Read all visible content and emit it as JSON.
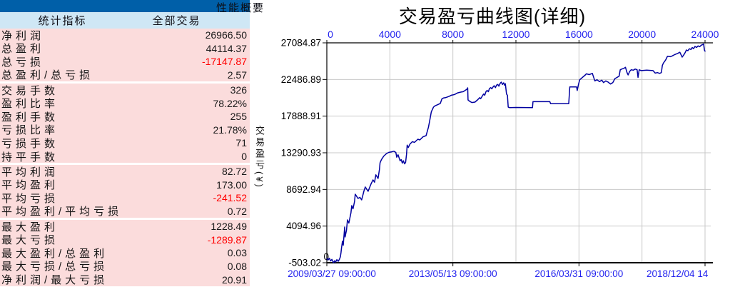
{
  "colors": {
    "titlebar_bg": "#005fa8",
    "header_bg": "#cfe7f5",
    "row_bg": "#fbdcdc",
    "negative_value": "#ff0000",
    "text": "#141414",
    "axis_label_blue": "#2222ee",
    "curve": "#0000a0",
    "grid": "#c9c9c9",
    "axis": "#000000"
  },
  "panel": {
    "titlebar_label": "性能概要",
    "header": {
      "col1": "统计指标",
      "col2": "全部交易"
    },
    "groups": [
      {
        "rows": [
          {
            "label": "净利润",
            "value": "26966.50",
            "negative": false
          },
          {
            "label": "总盈利",
            "value": "44114.37",
            "negative": false
          },
          {
            "label": "总亏损",
            "value": "-17147.87",
            "negative": true
          },
          {
            "label": "总盈利/总亏损",
            "value": "2.57",
            "negative": false
          }
        ]
      },
      {
        "rows": [
          {
            "label": "交易手数",
            "value": "326",
            "negative": false
          },
          {
            "label": "盈利比率",
            "value": "78.22%",
            "negative": false
          },
          {
            "label": "盈利手数",
            "value": "255",
            "negative": false
          },
          {
            "label": "亏损比率",
            "value": "21.78%",
            "negative": false
          },
          {
            "label": "亏损手数",
            "value": "71",
            "negative": false
          },
          {
            "label": "持平手数",
            "value": "0",
            "negative": false
          }
        ]
      },
      {
        "rows": [
          {
            "label": "平均利润",
            "value": "82.72",
            "negative": false
          },
          {
            "label": "平均盈利",
            "value": "173.00",
            "negative": false
          },
          {
            "label": "平均亏损",
            "value": "-241.52",
            "negative": true
          },
          {
            "label": "平均盈利/平均亏损",
            "value": "0.72",
            "negative": false
          }
        ]
      },
      {
        "rows": [
          {
            "label": "最大盈利",
            "value": "1228.49",
            "negative": false
          },
          {
            "label": "最大亏损",
            "value": "-1289.87",
            "negative": true
          },
          {
            "label": "最大盈利/总盈利",
            "value": "0.03",
            "negative": false
          },
          {
            "label": "最大亏损/总亏损",
            "value": "0.08",
            "negative": false
          },
          {
            "label": "净利润/最大亏损",
            "value": "20.91",
            "negative": false
          }
        ]
      }
    ]
  },
  "chart_data": {
    "type": "line",
    "title": "交易盈亏曲线图(详细)",
    "ylabel": "交易盈亏(¥)",
    "xlim": [
      0,
      24000
    ],
    "ylim": [
      -503.02,
      27084.87
    ],
    "grid": true,
    "legend": "none",
    "top_axis_ticks": [
      0,
      4000,
      8000,
      12000,
      16000,
      20000,
      24000
    ],
    "y_axis_ticks": [
      "27084.87",
      "22486.89",
      "17888.91",
      "13290.93",
      "8692.94",
      "4094.96",
      "-503.02"
    ],
    "bottom_axis_ticks": [
      {
        "x": 0,
        "label": "2009/03/27 09:00:00"
      },
      {
        "x": 8000,
        "label": "2013/05/13 09:00:00"
      },
      {
        "x": 16000,
        "label": "2016/03/31 09:00:00"
      },
      {
        "x": 24000,
        "label": "2018/12/04 14"
      }
    ],
    "corner_zero_label": "0",
    "series": [
      {
        "name": "equity_curve",
        "points": [
          [
            0,
            0
          ],
          [
            80,
            -150
          ],
          [
            160,
            60
          ],
          [
            240,
            -280
          ],
          [
            320,
            -80
          ],
          [
            420,
            -503
          ],
          [
            500,
            -250
          ],
          [
            560,
            -420
          ],
          [
            640,
            -120
          ],
          [
            720,
            -330
          ],
          [
            800,
            -60
          ],
          [
            860,
            250
          ],
          [
            900,
            800
          ],
          [
            930,
            1290
          ],
          [
            990,
            2190
          ],
          [
            1040,
            1700
          ],
          [
            1130,
            3980
          ],
          [
            1160,
            2720
          ],
          [
            1250,
            3600
          ],
          [
            1310,
            4870
          ],
          [
            1400,
            4480
          ],
          [
            1530,
            5770
          ],
          [
            1580,
            6660
          ],
          [
            1660,
            6260
          ],
          [
            1760,
            7200
          ],
          [
            1800,
            8100
          ],
          [
            1900,
            7800
          ],
          [
            1980,
            7560
          ],
          [
            2100,
            7700
          ],
          [
            2210,
            7380
          ],
          [
            2350,
            8460
          ],
          [
            2440,
            9000
          ],
          [
            2540,
            8700
          ],
          [
            2620,
            8460
          ],
          [
            2800,
            9350
          ],
          [
            2930,
            9890
          ],
          [
            3030,
            9600
          ],
          [
            3110,
            10520
          ],
          [
            3250,
            10070
          ],
          [
            3340,
            11240
          ],
          [
            3380,
            12040
          ],
          [
            3470,
            12450
          ],
          [
            3620,
            12890
          ],
          [
            3790,
            13190
          ],
          [
            3920,
            13340
          ],
          [
            4100,
            13400
          ],
          [
            4250,
            13490
          ],
          [
            4380,
            13340
          ],
          [
            4440,
            12740
          ],
          [
            4520,
            13040
          ],
          [
            4650,
            12290
          ],
          [
            4720,
            12440
          ],
          [
            4790,
            11990
          ],
          [
            4860,
            12290
          ],
          [
            4930,
            11900
          ],
          [
            5000,
            12080
          ],
          [
            5060,
            13100
          ],
          [
            5100,
            14250
          ],
          [
            5170,
            13950
          ],
          [
            5280,
            14390
          ],
          [
            5430,
            14690
          ],
          [
            5560,
            14600
          ],
          [
            5780,
            14990
          ],
          [
            5900,
            14900
          ],
          [
            6100,
            15290
          ],
          [
            6300,
            15440
          ],
          [
            6450,
            16500
          ],
          [
            6520,
            17230
          ],
          [
            6630,
            18420
          ],
          [
            6770,
            19020
          ],
          [
            6850,
            19170
          ],
          [
            7200,
            19480
          ],
          [
            7310,
            20070
          ],
          [
            7400,
            20160
          ],
          [
            7530,
            20210
          ],
          [
            7750,
            20360
          ],
          [
            7900,
            20510
          ],
          [
            8100,
            20600
          ],
          [
            8300,
            20810
          ],
          [
            8500,
            20900
          ],
          [
            8660,
            20960
          ],
          [
            8890,
            21260
          ],
          [
            8940,
            21440
          ],
          [
            8960,
            19920
          ],
          [
            9050,
            19770
          ],
          [
            9200,
            19600
          ],
          [
            9400,
            19650
          ],
          [
            9560,
            19920
          ],
          [
            9700,
            20210
          ],
          [
            9760,
            20070
          ],
          [
            9850,
            20360
          ],
          [
            9950,
            20660
          ],
          [
            10020,
            20510
          ],
          [
            10100,
            20960
          ],
          [
            10170,
            21110
          ],
          [
            10250,
            20960
          ],
          [
            10320,
            21350
          ],
          [
            10400,
            21470
          ],
          [
            10470,
            21320
          ],
          [
            10550,
            21560
          ],
          [
            10620,
            21710
          ],
          [
            10700,
            21470
          ],
          [
            10770,
            21770
          ],
          [
            10850,
            21860
          ],
          [
            10920,
            21650
          ],
          [
            11000,
            22010
          ],
          [
            11070,
            22160
          ],
          [
            11150,
            21860
          ],
          [
            11220,
            22070
          ],
          [
            11280,
            21770
          ],
          [
            11330,
            21950
          ],
          [
            11400,
            20660
          ],
          [
            11460,
            20510
          ],
          [
            11510,
            19020
          ],
          [
            11600,
            18950
          ],
          [
            12000,
            18980
          ],
          [
            13050,
            18950
          ],
          [
            13080,
            19700
          ],
          [
            14150,
            19700
          ],
          [
            14200,
            19450
          ],
          [
            15350,
            19450
          ],
          [
            15420,
            21560
          ],
          [
            15850,
            21560
          ],
          [
            15890,
            21110
          ],
          [
            15960,
            21800
          ],
          [
            16050,
            22450
          ],
          [
            16220,
            22750
          ],
          [
            16400,
            23050
          ],
          [
            16470,
            23200
          ],
          [
            16650,
            23100
          ],
          [
            16850,
            23250
          ],
          [
            17010,
            22310
          ],
          [
            17150,
            22450
          ],
          [
            17300,
            22220
          ],
          [
            17450,
            22400
          ],
          [
            17560,
            22100
          ],
          [
            17700,
            22310
          ],
          [
            17850,
            22160
          ],
          [
            18000,
            21920
          ],
          [
            18150,
            22100
          ],
          [
            18280,
            22600
          ],
          [
            18420,
            22750
          ],
          [
            18550,
            22900
          ],
          [
            18620,
            23710
          ],
          [
            18720,
            23800
          ],
          [
            18850,
            23890
          ],
          [
            18950,
            24010
          ],
          [
            19050,
            23350
          ],
          [
            19120,
            23050
          ],
          [
            19220,
            23500
          ],
          [
            19320,
            23710
          ],
          [
            19450,
            23650
          ],
          [
            19570,
            23800
          ],
          [
            19690,
            23710
          ],
          [
            19750,
            22750
          ],
          [
            19820,
            23710
          ],
          [
            19950,
            23600
          ],
          [
            20300,
            23650
          ],
          [
            20700,
            23600
          ],
          [
            20840,
            23290
          ],
          [
            20980,
            23350
          ],
          [
            21120,
            23250
          ],
          [
            21230,
            23350
          ],
          [
            21290,
            24250
          ],
          [
            21360,
            24550
          ],
          [
            21450,
            24790
          ],
          [
            21520,
            25000
          ],
          [
            21570,
            25210
          ],
          [
            21620,
            25390
          ],
          [
            21800,
            25350
          ],
          [
            21920,
            25450
          ],
          [
            22060,
            25600
          ],
          [
            22250,
            25750
          ],
          [
            22400,
            25900
          ],
          [
            22550,
            25290
          ],
          [
            22660,
            25600
          ],
          [
            22750,
            25900
          ],
          [
            22820,
            26190
          ],
          [
            22910,
            26100
          ],
          [
            23010,
            26340
          ],
          [
            23110,
            26250
          ],
          [
            23190,
            26490
          ],
          [
            23270,
            26350
          ],
          [
            23360,
            26640
          ],
          [
            23460,
            26500
          ],
          [
            23560,
            26700
          ],
          [
            23660,
            26600
          ],
          [
            23760,
            26790
          ],
          [
            23860,
            26880
          ],
          [
            23910,
            26930
          ],
          [
            23960,
            26190
          ],
          [
            24010,
            26040
          ]
        ]
      }
    ]
  }
}
